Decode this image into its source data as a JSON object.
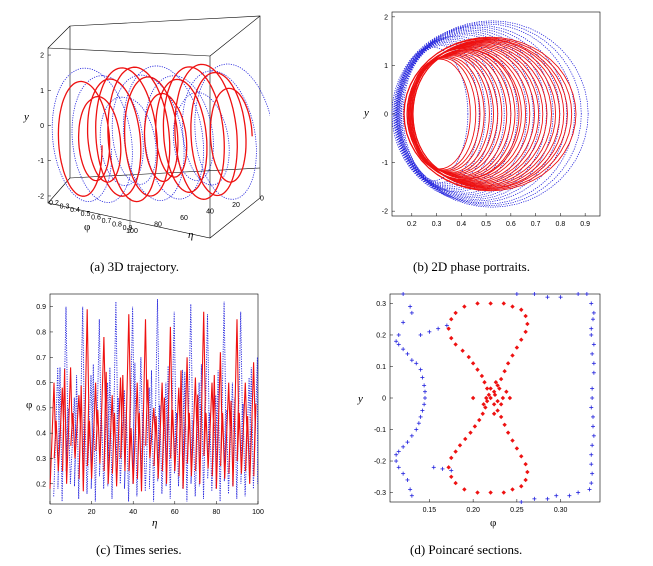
{
  "colors": {
    "series_a": "#ee1111",
    "series_b": "#2222dd"
  },
  "chart_data": [
    {
      "id": "a",
      "type": "line",
      "caption": "(a)  3D trajectory.",
      "xlabel": "φ",
      "zlabel": "η",
      "ylabel": "y",
      "y_ticks": [
        "-2",
        "-1",
        "0",
        "1",
        "2"
      ],
      "phi_ticks": [
        "0.2",
        "0.3",
        "0.4",
        "0.5",
        "0.6",
        "0.7",
        "0.8",
        "0.9"
      ],
      "eta_ticks": [
        "100",
        "80",
        "60",
        "40",
        "20",
        "0"
      ],
      "xlim": [
        0.15,
        0.95
      ],
      "ylim": [
        -2.2,
        2.2
      ],
      "zlim": [
        0,
        100
      ],
      "series": [
        {
          "style": "solid",
          "color": "#ee1111",
          "amplitude": 0.55,
          "center": 0.42,
          "cycles": 12
        },
        {
          "style": "dotted",
          "color": "#2222dd",
          "amplitude": 0.7,
          "center": 0.45,
          "cycles": 9
        }
      ]
    },
    {
      "id": "b",
      "type": "line",
      "caption": "(b)  2D phase portraits.",
      "xlabel": "",
      "ylabel": "y",
      "x_ticks": [
        "0.2",
        "0.3",
        "0.4",
        "0.5",
        "0.6",
        "0.7",
        "0.8",
        "0.9"
      ],
      "y_ticks": [
        "-2",
        "-1",
        "0",
        "1",
        "2"
      ],
      "xlim": [
        0.12,
        0.96
      ],
      "ylim": [
        -2.1,
        2.1
      ],
      "series": [
        {
          "style": "solid",
          "color": "#ee1111",
          "phi_range": [
            0.18,
            0.88
          ],
          "y_amp": 1.6
        },
        {
          "style": "dotted",
          "color": "#2222dd",
          "phi_range": [
            0.13,
            0.94
          ],
          "y_amp": 1.95
        }
      ]
    },
    {
      "id": "c",
      "type": "line",
      "caption": "(c)  Times series.",
      "xlabel": "η",
      "ylabel": "φ",
      "x_ticks": [
        "0",
        "20",
        "40",
        "60",
        "80",
        "100"
      ],
      "y_ticks": [
        "0.2",
        "0.3",
        "0.4",
        "0.5",
        "0.6",
        "0.7",
        "0.8",
        "0.9"
      ],
      "xlim": [
        0,
        100
      ],
      "ylim": [
        0.12,
        0.95
      ],
      "series": [
        {
          "style": "solid",
          "color": "#ee1111",
          "peaks": [
            0.6,
            0.58,
            0.66,
            0.55,
            0.89,
            0.6,
            0.78,
            0.55,
            0.62,
            0.87,
            0.6,
            0.85,
            0.5,
            0.6,
            0.82,
            0.58,
            0.7,
            0.62,
            0.88,
            0.6,
            0.72,
            0.6,
            0.85,
            0.6,
            0.68
          ],
          "troughs": [
            0.18,
            0.25,
            0.2,
            0.3,
            0.17,
            0.22,
            0.28,
            0.2,
            0.19,
            0.25,
            0.2,
            0.17,
            0.3,
            0.22,
            0.2,
            0.25,
            0.18,
            0.23,
            0.2,
            0.26,
            0.18,
            0.22,
            0.19,
            0.24,
            0.2
          ]
        },
        {
          "style": "dotted",
          "color": "#2222dd",
          "peaks": [
            0.66,
            0.9,
            0.54,
            0.9,
            0.63,
            0.85,
            0.6,
            0.92,
            0.57,
            0.9,
            0.7,
            0.58,
            0.93,
            0.6,
            0.88,
            0.65,
            0.91,
            0.6,
            0.87,
            0.55,
            0.92,
            0.6,
            0.88,
            0.62,
            0.7
          ],
          "troughs": [
            0.15,
            0.13,
            0.2,
            0.14,
            0.16,
            0.13,
            0.18,
            0.14,
            0.2,
            0.13,
            0.15,
            0.17,
            0.13,
            0.16,
            0.14,
            0.19,
            0.13,
            0.15,
            0.14,
            0.17,
            0.13,
            0.16,
            0.14,
            0.15,
            0.18
          ]
        }
      ]
    },
    {
      "id": "d",
      "type": "scatter",
      "caption": "(d)  Poincaré sections.",
      "xlabel": "φ",
      "ylabel": "y",
      "x_ticks": [
        "0.15",
        "0.20",
        "0.25",
        "0.30"
      ],
      "y_ticks": [
        "-0.3",
        "-0.2",
        "-0.1",
        "0",
        "0.1",
        "0.2",
        "0.3"
      ],
      "xlim": [
        0.105,
        0.345
      ],
      "ylim": [
        -0.33,
        0.33
      ],
      "series": [
        {
          "name": "",
          "marker": "cross",
          "color": "#2222dd",
          "points": [
            [
              0.33,
              0.33
            ],
            [
              0.32,
              0.33
            ],
            [
              0.3,
              0.32
            ],
            [
              0.285,
              0.32
            ],
            [
              0.27,
              0.33
            ],
            [
              0.25,
              0.33
            ],
            [
              0.335,
              0.3
            ],
            [
              0.338,
              0.27
            ],
            [
              0.337,
              0.25
            ],
            [
              0.335,
              0.22
            ],
            [
              0.335,
              0.2
            ],
            [
              0.338,
              0.17
            ],
            [
              0.336,
              0.14
            ],
            [
              0.338,
              0.11
            ],
            [
              0.338,
              0.08
            ],
            [
              0.336,
              0.03
            ],
            [
              0.336,
              0.0
            ],
            [
              0.335,
              -0.03
            ],
            [
              0.337,
              -0.06
            ],
            [
              0.337,
              -0.09
            ],
            [
              0.338,
              -0.12
            ],
            [
              0.336,
              -0.15
            ],
            [
              0.335,
              -0.18
            ],
            [
              0.335,
              -0.21
            ],
            [
              0.336,
              -0.24
            ],
            [
              0.335,
              -0.27
            ],
            [
              0.333,
              -0.29
            ],
            [
              0.32,
              -0.3
            ],
            [
              0.31,
              -0.31
            ],
            [
              0.295,
              -0.31
            ],
            [
              0.285,
              -0.32
            ],
            [
              0.27,
              -0.32
            ],
            [
              0.255,
              -0.33
            ],
            [
              0.12,
              0.33
            ],
            [
              0.128,
              0.29
            ],
            [
              0.13,
              0.27
            ],
            [
              0.12,
              0.24
            ],
            [
              0.115,
              0.2
            ],
            [
              0.112,
              0.18
            ],
            [
              0.115,
              0.17
            ],
            [
              0.12,
              0.155
            ],
            [
              0.125,
              0.14
            ],
            [
              0.13,
              0.12
            ],
            [
              0.135,
              0.11
            ],
            [
              0.14,
              0.09
            ],
            [
              0.142,
              0.065
            ],
            [
              0.144,
              0.04
            ],
            [
              0.145,
              0.02
            ],
            [
              0.145,
              0.0
            ],
            [
              0.144,
              -0.02
            ],
            [
              0.142,
              -0.04
            ],
            [
              0.14,
              -0.06
            ],
            [
              0.138,
              -0.08
            ],
            [
              0.135,
              -0.1
            ],
            [
              0.13,
              -0.12
            ],
            [
              0.125,
              -0.14
            ],
            [
              0.12,
              -0.155
            ],
            [
              0.115,
              -0.17
            ],
            [
              0.112,
              -0.18
            ],
            [
              0.112,
              -0.2
            ],
            [
              0.115,
              -0.22
            ],
            [
              0.12,
              -0.24
            ],
            [
              0.125,
              -0.26
            ],
            [
              0.128,
              -0.29
            ],
            [
              0.13,
              -0.31
            ],
            [
              0.14,
              0.2
            ],
            [
              0.15,
              0.21
            ],
            [
              0.16,
              0.22
            ],
            [
              0.17,
              0.23
            ],
            [
              0.155,
              -0.22
            ],
            [
              0.165,
              -0.225
            ],
            [
              0.175,
              -0.23
            ]
          ]
        },
        {
          "name": "",
          "marker": "diamond",
          "color": "#ee1111",
          "points": [
            [
              0.205,
              0.3
            ],
            [
              0.22,
              0.3
            ],
            [
              0.235,
              0.3
            ],
            [
              0.245,
              0.29
            ],
            [
              0.255,
              0.28
            ],
            [
              0.26,
              0.26
            ],
            [
              0.262,
              0.235
            ],
            [
              0.26,
              0.21
            ],
            [
              0.255,
              0.185
            ],
            [
              0.25,
              0.16
            ],
            [
              0.245,
              0.135
            ],
            [
              0.24,
              0.11
            ],
            [
              0.236,
              0.085
            ],
            [
              0.232,
              0.06
            ],
            [
              0.228,
              0.04
            ],
            [
              0.224,
              0.02
            ],
            [
              0.22,
              0.0
            ],
            [
              0.224,
              -0.02
            ],
            [
              0.228,
              -0.04
            ],
            [
              0.232,
              -0.06
            ],
            [
              0.236,
              -0.085
            ],
            [
              0.24,
              -0.11
            ],
            [
              0.245,
              -0.135
            ],
            [
              0.25,
              -0.16
            ],
            [
              0.255,
              -0.185
            ],
            [
              0.26,
              -0.21
            ],
            [
              0.262,
              -0.235
            ],
            [
              0.26,
              -0.26
            ],
            [
              0.255,
              -0.28
            ],
            [
              0.245,
              -0.29
            ],
            [
              0.235,
              -0.3
            ],
            [
              0.22,
              -0.3
            ],
            [
              0.205,
              -0.3
            ],
            [
              0.19,
              0.29
            ],
            [
              0.18,
              0.27
            ],
            [
              0.175,
              0.25
            ],
            [
              0.172,
              0.22
            ],
            [
              0.175,
              0.19
            ],
            [
              0.18,
              0.17
            ],
            [
              0.188,
              0.15
            ],
            [
              0.195,
              0.13
            ],
            [
              0.2,
              0.11
            ],
            [
              0.205,
              0.09
            ],
            [
              0.21,
              0.07
            ],
            [
              0.213,
              0.05
            ],
            [
              0.216,
              0.03
            ],
            [
              0.218,
              0.01
            ],
            [
              0.216,
              -0.01
            ],
            [
              0.214,
              -0.03
            ],
            [
              0.211,
              -0.05
            ],
            [
              0.207,
              -0.07
            ],
            [
              0.202,
              -0.09
            ],
            [
              0.197,
              -0.11
            ],
            [
              0.191,
              -0.13
            ],
            [
              0.185,
              -0.15
            ],
            [
              0.18,
              -0.17
            ],
            [
              0.175,
              -0.19
            ],
            [
              0.172,
              -0.22
            ],
            [
              0.175,
              -0.25
            ],
            [
              0.18,
              -0.27
            ],
            [
              0.19,
              -0.29
            ],
            [
              0.225,
              0.01
            ],
            [
              0.23,
              0.03
            ],
            [
              0.234,
              0.0
            ],
            [
              0.228,
              -0.01
            ],
            [
              0.22,
              0.03
            ],
            [
              0.215,
              0.0
            ],
            [
              0.232,
              -0.02
            ],
            [
              0.238,
              0.02
            ],
            [
              0.212,
              -0.02
            ],
            [
              0.226,
              0.05
            ],
            [
              0.224,
              -0.05
            ],
            [
              0.2,
              0.0
            ],
            [
              0.242,
              0.0
            ]
          ]
        }
      ]
    }
  ]
}
